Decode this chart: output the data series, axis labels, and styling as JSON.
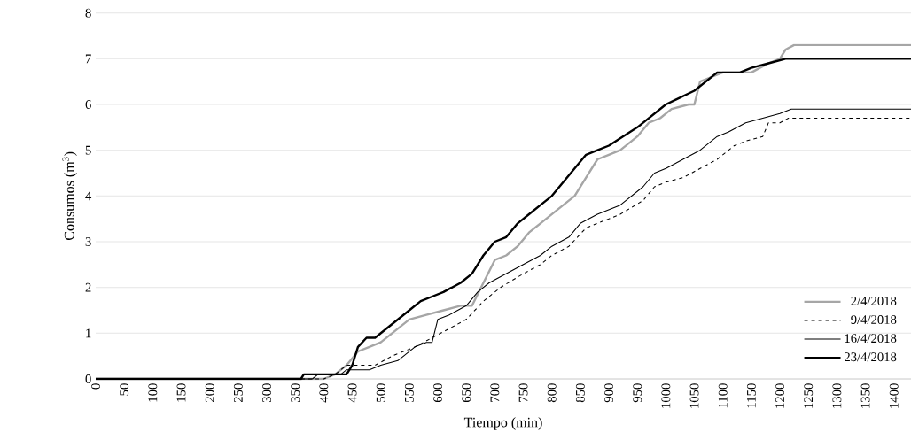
{
  "chart_data": {
    "type": "line",
    "xlabel": "Tiempo (min)",
    "ylabel": "Consumos (m$^{3}$)",
    "xlim": [
      0,
      1430
    ],
    "xticks": [
      0,
      50,
      100,
      150,
      200,
      250,
      300,
      350,
      400,
      450,
      500,
      550,
      600,
      650,
      700,
      750,
      800,
      850,
      900,
      950,
      1000,
      1050,
      1100,
      1150,
      1200,
      1250,
      1300,
      1350,
      1400
    ],
    "ylim": [
      0,
      8
    ],
    "yticks": [
      0,
      1,
      2,
      3,
      4,
      5,
      6,
      7,
      8
    ],
    "grid": "y",
    "legend": "bottom right",
    "marker": "none",
    "series": [
      {
        "name": "2/4/2018",
        "color": "#a6a6a6",
        "line_style": "solid",
        "x": [
          0,
          400,
          420,
          440,
          460,
          480,
          500,
          520,
          550,
          580,
          610,
          640,
          660,
          680,
          700,
          720,
          740,
          760,
          780,
          800,
          820,
          840,
          860,
          880,
          900,
          920,
          950,
          970,
          990,
          1010,
          1040,
          1050,
          1060,
          1080,
          1100,
          1150,
          1180,
          1200,
          1210,
          1225,
          1430
        ],
        "values": [
          0,
          0,
          0.1,
          0.3,
          0.6,
          0.7,
          0.8,
          1.0,
          1.3,
          1.4,
          1.5,
          1.6,
          1.6,
          2.1,
          2.6,
          2.7,
          2.9,
          3.2,
          3.4,
          3.6,
          3.8,
          4.0,
          4.4,
          4.8,
          4.9,
          5.0,
          5.3,
          5.6,
          5.7,
          5.9,
          6.0,
          6.0,
          6.5,
          6.6,
          6.7,
          6.7,
          6.9,
          7.0,
          7.2,
          7.3,
          7.3
        ]
      },
      {
        "name": "9/4/2018",
        "color": "#000000",
        "line_style": "dashed",
        "x": [
          0,
          400,
          420,
          440,
          490,
          520,
          560,
          590,
          620,
          650,
          680,
          710,
          750,
          780,
          800,
          830,
          860,
          880,
          920,
          960,
          980,
          1000,
          1030,
          1060,
          1090,
          1120,
          1140,
          1170,
          1180,
          1200,
          1215,
          1430
        ],
        "values": [
          0,
          0,
          0.1,
          0.3,
          0.3,
          0.5,
          0.7,
          0.9,
          1.1,
          1.3,
          1.7,
          2.0,
          2.3,
          2.5,
          2.7,
          2.9,
          3.3,
          3.4,
          3.6,
          3.9,
          4.2,
          4.3,
          4.4,
          4.6,
          4.8,
          5.1,
          5.2,
          5.3,
          5.6,
          5.6,
          5.7,
          5.7
        ]
      },
      {
        "name": "16/4/2018",
        "color": "#000000",
        "line_style": "solid",
        "x": [
          0,
          380,
          390,
          430,
          440,
          480,
          500,
          530,
          560,
          580,
          590,
          600,
          620,
          650,
          670,
          690,
          720,
          750,
          780,
          800,
          830,
          850,
          880,
          920,
          960,
          980,
          1000,
          1030,
          1060,
          1090,
          1110,
          1140,
          1170,
          1200,
          1220,
          1430
        ],
        "values": [
          0,
          0,
          0.1,
          0.1,
          0.2,
          0.2,
          0.3,
          0.4,
          0.7,
          0.8,
          0.8,
          1.3,
          1.4,
          1.6,
          1.9,
          2.1,
          2.3,
          2.5,
          2.7,
          2.9,
          3.1,
          3.4,
          3.6,
          3.8,
          4.2,
          4.5,
          4.6,
          4.8,
          5.0,
          5.3,
          5.4,
          5.6,
          5.7,
          5.8,
          5.9,
          5.9
        ]
      },
      {
        "name": "23/4/2018",
        "color": "#000000",
        "line_style": "solid",
        "x": [
          0,
          360,
          365,
          440,
          450,
          460,
          475,
          490,
          520,
          550,
          570,
          590,
          610,
          640,
          660,
          680,
          700,
          720,
          740,
          760,
          780,
          800,
          820,
          840,
          860,
          880,
          900,
          950,
          1000,
          1050,
          1090,
          1130,
          1150,
          1180,
          1210,
          1430
        ],
        "values": [
          0,
          0,
          0.1,
          0.1,
          0.3,
          0.7,
          0.9,
          0.9,
          1.2,
          1.5,
          1.7,
          1.8,
          1.9,
          2.1,
          2.3,
          2.7,
          3.0,
          3.1,
          3.4,
          3.6,
          3.8,
          4.0,
          4.3,
          4.6,
          4.9,
          5.0,
          5.1,
          5.5,
          6.0,
          6.3,
          6.7,
          6.7,
          6.8,
          6.9,
          7.0,
          7.0
        ]
      }
    ]
  }
}
